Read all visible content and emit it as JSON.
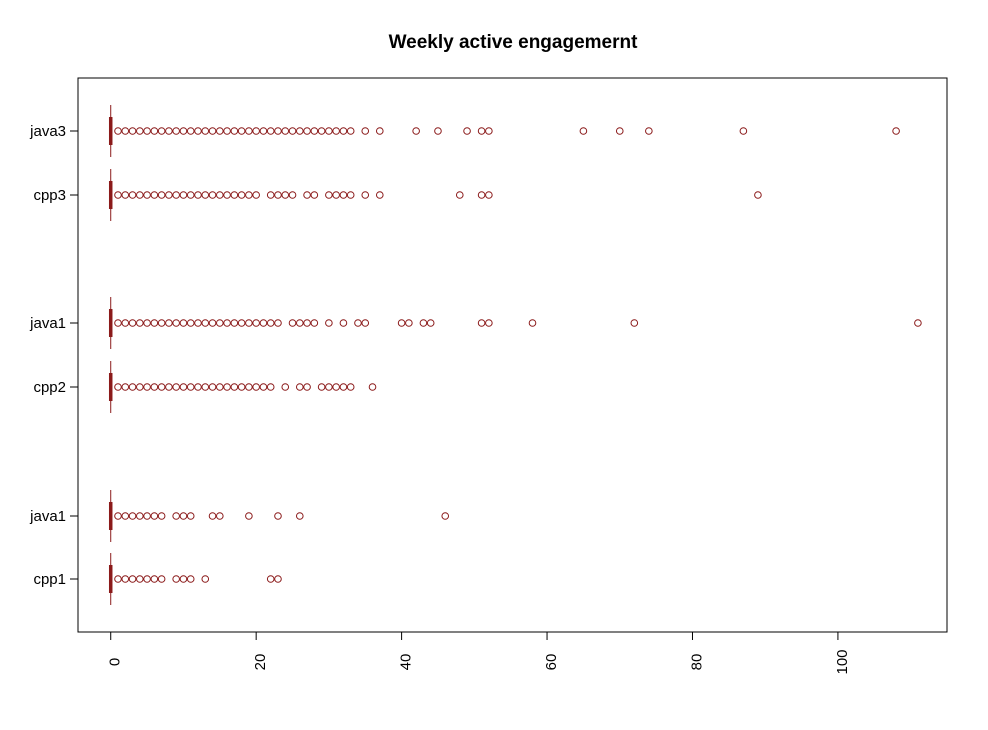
{
  "chart_data": {
    "type": "boxplot",
    "orientation": "horizontal",
    "title": "Weekly active engagemernt",
    "xlabel": "",
    "ylabel": "",
    "xlim": [
      -4.5,
      115
    ],
    "x_ticks": [
      0,
      20,
      40,
      60,
      80,
      100
    ],
    "x_tick_labels": [
      "0",
      "20",
      "40",
      "60",
      "80",
      "100"
    ],
    "grid": false,
    "legend": "none",
    "colors": {
      "box": "#8B1A1A",
      "points": "#8B1A1A",
      "axis": "#000000"
    },
    "groups": [
      {
        "label": "java3",
        "box": {
          "min": 0,
          "q1": 0,
          "median": 0,
          "q3": 0,
          "max": 0,
          "whisker_low": 0,
          "whisker_high": 0
        },
        "outliers": [
          1,
          2,
          3,
          4,
          5,
          6,
          7,
          8,
          9,
          10,
          11,
          12,
          13,
          14,
          15,
          16,
          17,
          18,
          19,
          20,
          21,
          22,
          23,
          24,
          25,
          26,
          27,
          28,
          29,
          30,
          31,
          32,
          33,
          35,
          37,
          42,
          45,
          49,
          51,
          52,
          65,
          70,
          74,
          87,
          108
        ]
      },
      {
        "label": "cpp3",
        "box": {
          "min": 0,
          "q1": 0,
          "median": 0,
          "q3": 0,
          "max": 0
        },
        "outliers": [
          1,
          2,
          3,
          4,
          5,
          6,
          7,
          8,
          9,
          10,
          11,
          12,
          13,
          14,
          15,
          16,
          17,
          18,
          19,
          20,
          22,
          23,
          24,
          25,
          27,
          28,
          30,
          31,
          32,
          33,
          35,
          37,
          48,
          51,
          52,
          89
        ]
      },
      {
        "label": "java1",
        "box": {
          "min": 0,
          "q1": 0,
          "median": 0,
          "q3": 0,
          "max": 0
        },
        "outliers": [
          1,
          2,
          3,
          4,
          5,
          6,
          7,
          8,
          9,
          10,
          11,
          12,
          13,
          14,
          15,
          16,
          17,
          18,
          19,
          20,
          21,
          22,
          23,
          25,
          26,
          27,
          28,
          30,
          32,
          34,
          35,
          40,
          41,
          43,
          44,
          51,
          52,
          58,
          72,
          111
        ]
      },
      {
        "label": "cpp2",
        "box": {
          "min": 0,
          "q1": 0,
          "median": 0,
          "q3": 0,
          "max": 0
        },
        "outliers": [
          1,
          2,
          3,
          4,
          5,
          6,
          7,
          8,
          9,
          10,
          11,
          12,
          13,
          14,
          15,
          16,
          17,
          18,
          19,
          20,
          21,
          22,
          24,
          26,
          27,
          29,
          30,
          31,
          32,
          33,
          36
        ]
      },
      {
        "label": "java1",
        "box": {
          "min": 0,
          "q1": 0,
          "median": 0,
          "q3": 0,
          "max": 0
        },
        "outliers": [
          1,
          2,
          3,
          4,
          5,
          6,
          7,
          9,
          10,
          11,
          14,
          15,
          19,
          23,
          26,
          46
        ]
      },
      {
        "label": "cpp1",
        "box": {
          "min": 0,
          "q1": 0,
          "median": 0,
          "q3": 0,
          "max": 0
        },
        "outliers": [
          1,
          2,
          3,
          4,
          5,
          6,
          7,
          9,
          10,
          11,
          13,
          22,
          23
        ]
      }
    ]
  }
}
